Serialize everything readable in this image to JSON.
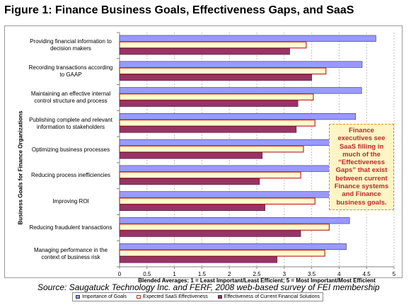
{
  "title": "Figure 1: Finance Business Goals, Effectiveness Gaps, and SaaS",
  "source": "Source: Saugatuck Technology Inc. and FERF, 2008 web-based survey of FEI membership",
  "callout": "Finance executives see SaaS filling in much of the “Effectiveness Gaps” that exist between current Finance systems and Finance business goals.",
  "colors": {
    "importance": "#9999ff",
    "saas": "#ffffcc",
    "current": "#993366",
    "saas_border": "#c0282b",
    "callout_border": "#d98c1c"
  },
  "chart_data": {
    "type": "bar",
    "orientation": "horizontal",
    "xlabel": "Blended Averages: 1 = Least  Important/Least Efficient; 5 = Most Important/Most Efficient",
    "ylabel": "Business Goals for Finance Organizations",
    "xlim": [
      0,
      5
    ],
    "xticks": [
      "0",
      "0.5",
      "1",
      "1.5",
      "2",
      "2.5",
      "3",
      "3.5",
      "4",
      "4.5",
      "5"
    ],
    "grid": true,
    "legend": "bottom",
    "categories": [
      "Providing financial information to decision makers",
      "Recording transactions according to GAAP",
      "Maintaining an effective internal control structure and process",
      "Publishing complete and relevant information to stakeholders",
      "Optimizing business processes",
      "Reducing process inefficiencies",
      "Improving ROI",
      "Reducing fraudulent transactions",
      "Managing performance in the context of business risk"
    ],
    "series": [
      {
        "name": "Importance of Goals",
        "values": [
          4.67,
          4.42,
          4.41,
          4.3,
          4.2,
          4.1,
          4.0,
          4.19,
          4.13
        ]
      },
      {
        "name": "Expected SaaS Effectiveness",
        "values": [
          3.4,
          3.76,
          3.53,
          3.56,
          3.35,
          3.3,
          3.56,
          3.82,
          3.74
        ]
      },
      {
        "name": "Effectiveness of Current Financial Solutions",
        "values": [
          3.1,
          3.5,
          3.25,
          3.22,
          2.6,
          2.55,
          2.65,
          3.3,
          2.87
        ]
      }
    ]
  }
}
